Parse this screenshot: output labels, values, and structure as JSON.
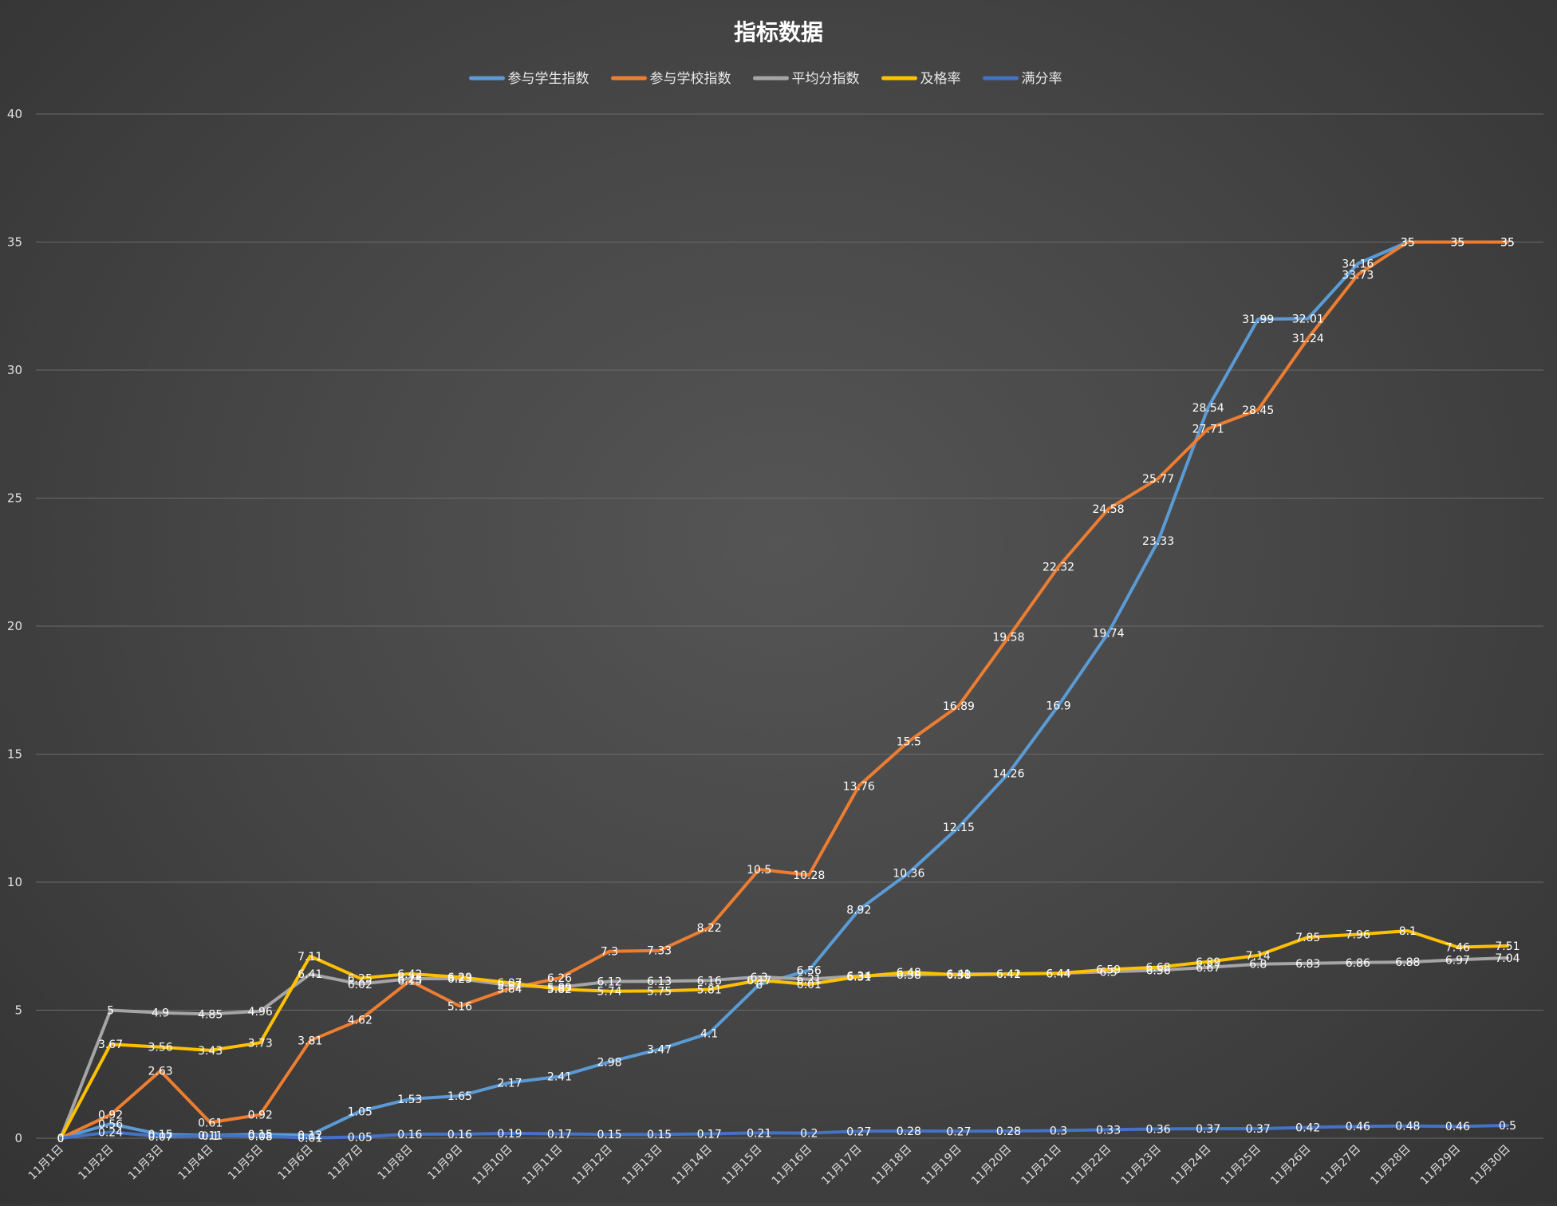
{
  "chart_data": {
    "type": "line",
    "title": "指标数据",
    "xlabel": "",
    "ylabel": "",
    "ylim": [
      0,
      40
    ],
    "yticks": [
      0,
      5,
      10,
      15,
      20,
      25,
      30,
      35,
      40
    ],
    "grid": true,
    "legend_position": "top",
    "categories": [
      "11月1日",
      "11月2日",
      "11月3日",
      "11月4日",
      "11月5日",
      "11月6日",
      "11月7日",
      "11月8日",
      "11月9日",
      "11月10日",
      "11月11日",
      "11月12日",
      "11月13日",
      "11月14日",
      "11月15日",
      "11月16日",
      "11月17日",
      "11月18日",
      "11月19日",
      "11月20日",
      "11月21日",
      "11月22日",
      "11月23日",
      "11月24日",
      "11月25日",
      "11月26日",
      "11月27日",
      "11月28日",
      "11月29日",
      "11月30日"
    ],
    "series": [
      {
        "name": "参与学生指数",
        "color": "#5b9bd5",
        "values": [
          0,
          0.56,
          0.15,
          0.11,
          0.15,
          0.12,
          1.05,
          1.53,
          1.65,
          2.17,
          2.41,
          2.98,
          3.47,
          4.1,
          6.0,
          6.56,
          8.92,
          10.36,
          12.15,
          14.26,
          16.9,
          19.74,
          23.33,
          28.54,
          31.99,
          32.01,
          34.16,
          35,
          35,
          35
        ]
      },
      {
        "name": "参与学校指数",
        "color": "#ed7d31",
        "values": [
          0,
          0.92,
          2.63,
          0.61,
          0.92,
          3.81,
          4.62,
          6.15,
          5.16,
          5.84,
          6.26,
          7.3,
          7.33,
          8.22,
          10.5,
          10.28,
          13.76,
          15.5,
          16.89,
          19.58,
          22.32,
          24.58,
          25.77,
          27.71,
          28.45,
          31.24,
          33.73,
          35,
          35,
          35
        ]
      },
      {
        "name": "平均分指数",
        "color": "#a5a5a5",
        "values": [
          0,
          5,
          4.9,
          4.85,
          4.96,
          6.41,
          6.02,
          6.23,
          6.23,
          5.97,
          5.89,
          6.12,
          6.13,
          6.16,
          6.3,
          6.21,
          6.34,
          6.38,
          6.41,
          6.42,
          6.44,
          6.5,
          6.56,
          6.67,
          6.8,
          6.83,
          6.86,
          6.88,
          6.97,
          7.04
        ]
      },
      {
        "name": "及格率",
        "color": "#ffc000",
        "values": [
          0,
          3.67,
          3.56,
          3.43,
          3.73,
          7.11,
          6.25,
          6.42,
          6.29,
          6.07,
          5.82,
          5.74,
          5.75,
          5.81,
          6.17,
          6.01,
          6.31,
          6.48,
          6.38,
          6.41,
          6.44,
          6.59,
          6.68,
          6.89,
          7.14,
          7.85,
          7.96,
          8.1,
          7.46,
          7.51
        ]
      },
      {
        "name": "满分率",
        "color": "#4472c4",
        "values": [
          0,
          0.24,
          0.07,
          0.1,
          0.08,
          0.01,
          0.05,
          0.16,
          0.16,
          0.19,
          0.17,
          0.15,
          0.15,
          0.17,
          0.21,
          0.2,
          0.27,
          0.28,
          0.27,
          0.28,
          0.3,
          0.33,
          0.36,
          0.37,
          0.37,
          0.42,
          0.46,
          0.48,
          0.46,
          0.5
        ]
      }
    ]
  }
}
